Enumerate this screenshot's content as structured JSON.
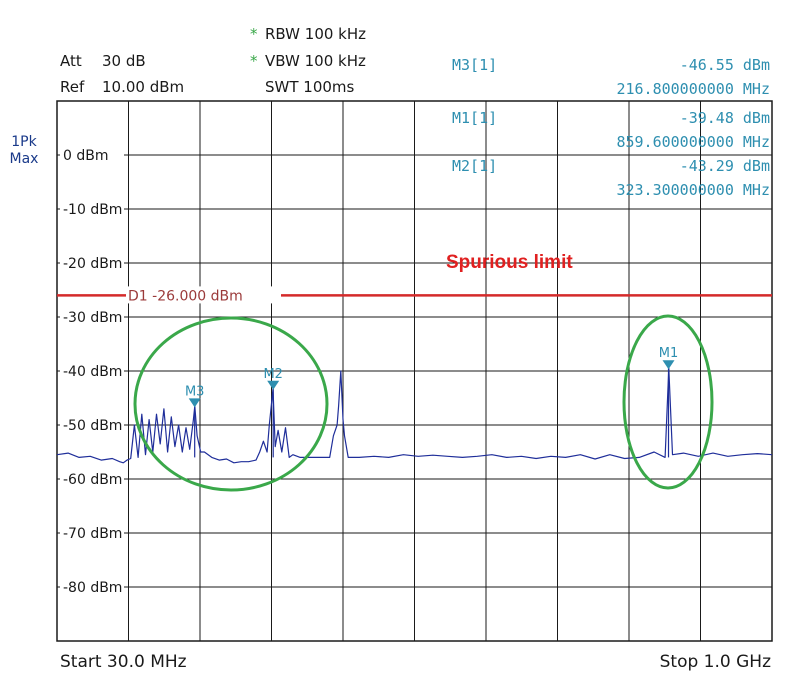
{
  "header": {
    "att_label": "Att",
    "att_value": "30 dB",
    "ref_label": "Ref",
    "ref_value": "10.00 dBm",
    "rbw_star": "*",
    "rbw": "RBW 100 kHz",
    "vbw_star": "*",
    "vbw": "VBW 100 kHz",
    "swt": "SWT 100ms"
  },
  "markers_table": [
    {
      "name": "M3[1]",
      "level": "-46.55 dBm",
      "freq": "216.800000000 MHz"
    },
    {
      "name": "M1[1]",
      "level": "-39.48 dBm",
      "freq": "859.600000000 MHz"
    },
    {
      "name": "M2[1]",
      "level": "-43.29 dBm",
      "freq": "323.300000000 MHz"
    }
  ],
  "trace_mode": {
    "line1": "1Pk",
    "line2": "Max"
  },
  "footer": {
    "start": "Start 30.0 MHz",
    "stop": "Stop 1.0 GHz"
  },
  "annotation": "Spurious limit",
  "colors": {
    "trace": "#1f2e9a",
    "grid": "#1a1a1a",
    "limit": "#d42a2a",
    "marker": "#2e8fb0",
    "highlight": "#3aa84a",
    "annotation": "#e02020"
  },
  "chart_data": {
    "type": "line",
    "x_unit": "MHz",
    "y_unit": "dBm",
    "xlim": [
      30,
      1000
    ],
    "ylim": [
      -90,
      10
    ],
    "y_ticks": [
      0,
      -10,
      -20,
      -30,
      -40,
      -50,
      -60,
      -70,
      -80
    ],
    "y_tick_labels": [
      "0 dBm",
      "-10 dBm",
      "-20 dBm",
      "-30 dBm",
      "-40 dBm",
      "-50 dBm",
      "-60 dBm",
      "-70 dBm",
      "-80 dBm"
    ],
    "grid": true,
    "limit_line": {
      "label": "D1",
      "value_label": "-26.000 dBm",
      "value": -26
    },
    "markers": [
      {
        "label": "M1",
        "x": 859.6,
        "y": -39.48
      },
      {
        "label": "M2",
        "x": 323.3,
        "y": -43.29
      },
      {
        "label": "M3",
        "x": 216.8,
        "y": -46.55
      }
    ],
    "series": [
      {
        "x": [
          30,
          45,
          60,
          75,
          90,
          105,
          115,
          120,
          125,
          130,
          135,
          140,
          145,
          150,
          155,
          160,
          165,
          170,
          175,
          180,
          185,
          190,
          195,
          200,
          205,
          210,
          215,
          217,
          220,
          225,
          230,
          240,
          250,
          260,
          270,
          280,
          290,
          300,
          305,
          310,
          315,
          318,
          323,
          326,
          330,
          335,
          340,
          345,
          350,
          360,
          370,
          380,
          390,
          400,
          405,
          410,
          412,
          415,
          418,
          420,
          425,
          430,
          440,
          460,
          480,
          500,
          520,
          540,
          560,
          580,
          600,
          620,
          640,
          660,
          680,
          700,
          720,
          740,
          760,
          780,
          800,
          820,
          840,
          855,
          860,
          865,
          880,
          900,
          920,
          940,
          960,
          980,
          1000
        ],
        "y": [
          -55.5,
          -55.2,
          -56,
          -55.8,
          -56.5,
          -56.2,
          -56.8,
          -57,
          -56.5,
          -56.2,
          -50,
          -56,
          -48,
          -55.5,
          -49,
          -55,
          -48,
          -53.5,
          -47,
          -55,
          -48.5,
          -54,
          -50,
          -55,
          -50.5,
          -54.5,
          -49,
          -46.5,
          -52,
          -55,
          -55,
          -56,
          -56.5,
          -56.3,
          -57,
          -56.8,
          -56.8,
          -56.5,
          -55,
          -53,
          -55,
          -50,
          -43.3,
          -54,
          -51,
          -55,
          -50.5,
          -56,
          -55.5,
          -56,
          -56,
          -56,
          -56,
          -56,
          -52,
          -50,
          -46.5,
          -40,
          -49,
          -52,
          -56,
          -56,
          -56,
          -55.8,
          -56,
          -55.5,
          -55.8,
          -55.6,
          -55.8,
          -56,
          -55.8,
          -55.5,
          -56,
          -55.8,
          -56.2,
          -55.8,
          -56,
          -55.5,
          -56.3,
          -55.5,
          -56.2,
          -56,
          -55,
          -56,
          -39.5,
          -55.5,
          -55.2,
          -55.8,
          -55.2,
          -55.8,
          -55.5,
          -55.3,
          -55.5
        ]
      }
    ]
  }
}
